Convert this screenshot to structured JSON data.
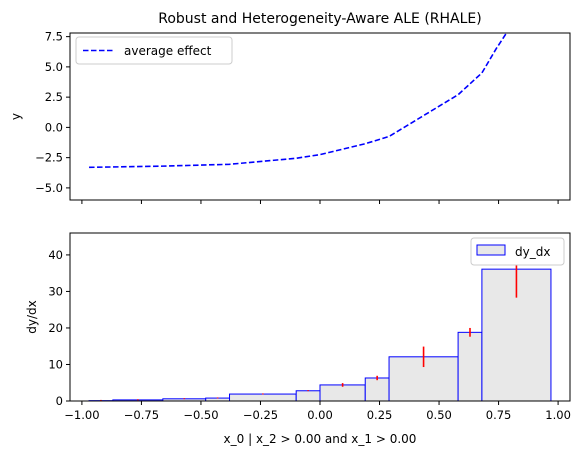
{
  "chart_data": [
    {
      "type": "line",
      "title": "Robust and Heterogeneity-Aware ALE (RHALE)",
      "xlabel": "",
      "ylabel": "y",
      "xlim": [
        -1.05,
        1.05
      ],
      "ylim": [
        -6.0,
        7.8
      ],
      "xticks": [
        -1.0,
        -0.75,
        -0.5,
        -0.25,
        0.0,
        0.25,
        0.5,
        0.75,
        1.0
      ],
      "yticks": [
        "-5.0",
        "-2.5",
        "0.0",
        "2.5",
        "5.0",
        "7.5"
      ],
      "show_xtick_labels": false,
      "grid": false,
      "legend": "upper-left",
      "series": [
        {
          "name": "average effect",
          "color": "#0000ff",
          "style": "dashed",
          "x": [
            -0.97,
            -0.87,
            -0.66,
            -0.38,
            -0.1,
            0.0,
            0.19,
            0.29,
            0.58,
            0.68,
            0.74,
            0.8
          ],
          "y": [
            -3.3,
            -3.27,
            -3.2,
            -3.05,
            -2.55,
            -2.25,
            -1.35,
            -0.75,
            2.7,
            4.5,
            6.5,
            8.3
          ]
        }
      ]
    },
    {
      "type": "bar",
      "xlabel": "x_0 | x_2 > 0.00 and x_1 > 0.00",
      "ylabel": "dy/dx",
      "xlim": [
        -1.05,
        1.05
      ],
      "ylim": [
        0,
        46
      ],
      "xticks": [
        "−1.00",
        "−0.75",
        "−0.50",
        "−0.25",
        "0.00",
        "0.25",
        "0.50",
        "0.75",
        "1.00"
      ],
      "xtick_values": [
        -1.0,
        -0.75,
        -0.5,
        -0.25,
        0.0,
        0.25,
        0.5,
        0.75,
        1.0
      ],
      "yticks": [
        "0",
        "10",
        "20",
        "30",
        "40"
      ],
      "ytick_values": [
        0,
        10,
        20,
        30,
        40
      ],
      "grid": false,
      "legend": "upper-right",
      "bar_fill": "#e8e8e8",
      "bar_edge": "#0000ff",
      "error_color": "#ff0000",
      "series": [
        {
          "name": "dy_dx",
          "bins": [
            {
              "x0": -0.97,
              "x1": -0.87,
              "value": 0.1,
              "err": 0.2
            },
            {
              "x0": -0.87,
              "x1": -0.66,
              "value": 0.3,
              "err": 0.1
            },
            {
              "x0": -0.66,
              "x1": -0.48,
              "value": 0.6,
              "err": 0.1
            },
            {
              "x0": -0.48,
              "x1": -0.38,
              "value": 0.8,
              "err": 0.1
            },
            {
              "x0": -0.38,
              "x1": -0.1,
              "value": 1.9,
              "err": 0.1
            },
            {
              "x0": -0.1,
              "x1": 0.0,
              "value": 2.8,
              "err": 0.1
            },
            {
              "x0": 0.0,
              "x1": 0.19,
              "value": 4.4,
              "err": 0.5
            },
            {
              "x0": 0.19,
              "x1": 0.29,
              "value": 6.3,
              "err": 0.6
            },
            {
              "x0": 0.29,
              "x1": 0.58,
              "value": 12.1,
              "err": 2.8
            },
            {
              "x0": 0.58,
              "x1": 0.68,
              "value": 18.8,
              "err": 1.2
            },
            {
              "x0": 0.68,
              "x1": 0.97,
              "value": 36.1,
              "err": 7.8
            }
          ]
        }
      ]
    }
  ]
}
